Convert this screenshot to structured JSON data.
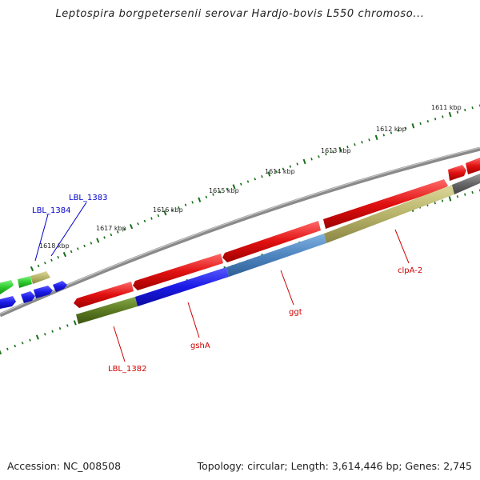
{
  "title": "Leptospira borgpetersenii serovar Hardjo-bovis L550 chromoso...",
  "footer": {
    "accession": "Accession: NC_008508",
    "summary": "Topology: circular; Length: 3,614,446 bp; Genes: 2,745"
  },
  "ticks": [
    {
      "label": "1611 kbp"
    },
    {
      "label": "1612 kbp"
    },
    {
      "label": "1613 kbp"
    },
    {
      "label": "1614 kbp"
    },
    {
      "label": "1615 kbp"
    },
    {
      "label": "1616 kbp"
    },
    {
      "label": "1617 kbp"
    },
    {
      "label": "1618 kbp"
    }
  ],
  "gene_labels": [
    {
      "name": "LBL_1384",
      "color": "#0000cc"
    },
    {
      "name": "LBL_1383",
      "color": "#0000cc"
    },
    {
      "name": "LBL_1382",
      "color": "#cc0000"
    },
    {
      "name": "gshA",
      "color": "#cc0000"
    },
    {
      "name": "ggt",
      "color": "#cc0000"
    },
    {
      "name": "clpA-2",
      "color": "#cc0000"
    }
  ],
  "colors": {
    "backbone": "#8a8a8a",
    "cds": "#e01010",
    "gene_blue": "#1a1ae6",
    "gene_steel": "#4f86c0",
    "gene_olive": "#b8b46a",
    "gene_darkolive": "#5c7a22",
    "gene_green": "#2ecc2e",
    "gene_gray": "#666666",
    "tick": "#1a6e1a"
  }
}
